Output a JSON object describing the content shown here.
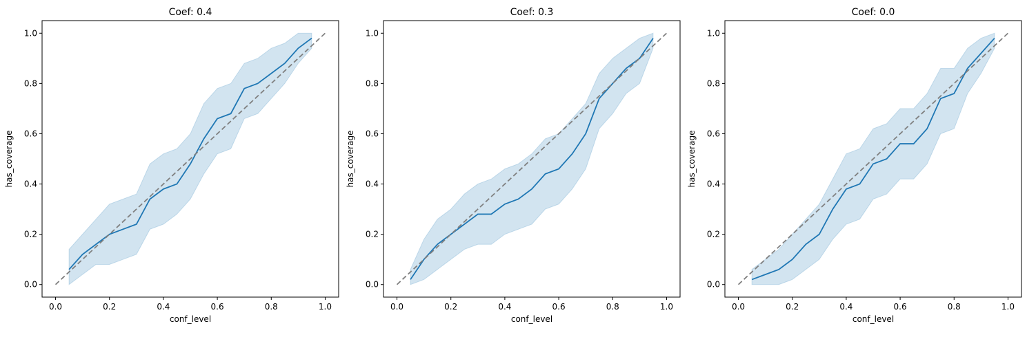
{
  "figure": {
    "background": "#ffffff"
  },
  "colors": {
    "series": "#1f77b4",
    "reference": "#808080"
  },
  "chart_data": [
    {
      "type": "line",
      "title": "Coef: 0.4",
      "xlabel": "conf_level",
      "ylabel": "has_coverage",
      "xlim": [
        -0.05,
        1.05
      ],
      "ylim": [
        -0.05,
        1.05
      ],
      "xticks": [
        0.0,
        0.2,
        0.4,
        0.6,
        0.8,
        1.0
      ],
      "yticks": [
        0.0,
        0.2,
        0.4,
        0.6,
        0.8,
        1.0
      ],
      "xtick_labels": [
        "0.0",
        "0.2",
        "0.4",
        "0.6",
        "0.8",
        "1.0"
      ],
      "ytick_labels": [
        "0.0",
        "0.2",
        "0.4",
        "0.6",
        "0.8",
        "1.0"
      ],
      "x": [
        0.05,
        0.1,
        0.15,
        0.2,
        0.25,
        0.3,
        0.35,
        0.4,
        0.45,
        0.5,
        0.55,
        0.6,
        0.65,
        0.7,
        0.75,
        0.8,
        0.85,
        0.9,
        0.95
      ],
      "mean": [
        0.06,
        0.12,
        0.16,
        0.2,
        0.22,
        0.24,
        0.34,
        0.38,
        0.4,
        0.48,
        0.58,
        0.66,
        0.68,
        0.78,
        0.8,
        0.84,
        0.88,
        0.94,
        0.98
      ],
      "lower": [
        0.0,
        0.04,
        0.08,
        0.08,
        0.1,
        0.12,
        0.22,
        0.24,
        0.28,
        0.34,
        0.44,
        0.52,
        0.54,
        0.66,
        0.68,
        0.74,
        0.8,
        0.88,
        0.94
      ],
      "upper": [
        0.14,
        0.2,
        0.26,
        0.32,
        0.34,
        0.36,
        0.48,
        0.52,
        0.54,
        0.6,
        0.72,
        0.78,
        0.8,
        0.88,
        0.9,
        0.94,
        0.96,
        1.0,
        1.0
      ],
      "reference": {
        "x": [
          0.0,
          1.0
        ],
        "y": [
          0.0,
          1.0
        ],
        "style": "dashed"
      }
    },
    {
      "type": "line",
      "title": "Coef: 0.3",
      "xlabel": "conf_level",
      "ylabel": "has_coverage",
      "xlim": [
        -0.05,
        1.05
      ],
      "ylim": [
        -0.05,
        1.05
      ],
      "xticks": [
        0.0,
        0.2,
        0.4,
        0.6,
        0.8,
        1.0
      ],
      "yticks": [
        0.0,
        0.2,
        0.4,
        0.6,
        0.8,
        1.0
      ],
      "xtick_labels": [
        "0.0",
        "0.2",
        "0.4",
        "0.6",
        "0.8",
        "1.0"
      ],
      "ytick_labels": [
        "0.0",
        "0.2",
        "0.4",
        "0.6",
        "0.8",
        "1.0"
      ],
      "x": [
        0.05,
        0.1,
        0.15,
        0.2,
        0.25,
        0.3,
        0.35,
        0.4,
        0.45,
        0.5,
        0.55,
        0.6,
        0.65,
        0.7,
        0.75,
        0.8,
        0.85,
        0.9,
        0.95
      ],
      "mean": [
        0.02,
        0.1,
        0.16,
        0.2,
        0.24,
        0.28,
        0.28,
        0.32,
        0.34,
        0.38,
        0.44,
        0.46,
        0.52,
        0.6,
        0.74,
        0.8,
        0.86,
        0.9,
        0.98
      ],
      "lower": [
        0.0,
        0.02,
        0.06,
        0.1,
        0.14,
        0.16,
        0.16,
        0.2,
        0.22,
        0.24,
        0.3,
        0.32,
        0.38,
        0.46,
        0.62,
        0.68,
        0.76,
        0.8,
        0.94
      ],
      "upper": [
        0.06,
        0.18,
        0.26,
        0.3,
        0.36,
        0.4,
        0.42,
        0.46,
        0.48,
        0.52,
        0.58,
        0.6,
        0.66,
        0.72,
        0.84,
        0.9,
        0.94,
        0.98,
        1.0
      ],
      "reference": {
        "x": [
          0.0,
          1.0
        ],
        "y": [
          0.0,
          1.0
        ],
        "style": "dashed"
      }
    },
    {
      "type": "line",
      "title": "Coef: 0.0",
      "xlabel": "conf_level",
      "ylabel": "has_coverage",
      "xlim": [
        -0.05,
        1.05
      ],
      "ylim": [
        -0.05,
        1.05
      ],
      "xticks": [
        0.0,
        0.2,
        0.4,
        0.6,
        0.8,
        1.0
      ],
      "yticks": [
        0.0,
        0.2,
        0.4,
        0.6,
        0.8,
        1.0
      ],
      "xtick_labels": [
        "0.0",
        "0.2",
        "0.4",
        "0.6",
        "0.8",
        "1.0"
      ],
      "ytick_labels": [
        "0.0",
        "0.2",
        "0.4",
        "0.6",
        "0.8",
        "1.0"
      ],
      "x": [
        0.05,
        0.1,
        0.15,
        0.2,
        0.25,
        0.3,
        0.35,
        0.4,
        0.45,
        0.5,
        0.55,
        0.6,
        0.65,
        0.7,
        0.75,
        0.8,
        0.85,
        0.9,
        0.95
      ],
      "mean": [
        0.02,
        0.04,
        0.06,
        0.1,
        0.16,
        0.2,
        0.3,
        0.38,
        0.4,
        0.48,
        0.5,
        0.56,
        0.56,
        0.62,
        0.74,
        0.76,
        0.86,
        0.92,
        0.98
      ],
      "lower": [
        0.0,
        0.0,
        0.0,
        0.02,
        0.06,
        0.1,
        0.18,
        0.24,
        0.26,
        0.34,
        0.36,
        0.42,
        0.42,
        0.48,
        0.6,
        0.62,
        0.76,
        0.84,
        0.94
      ],
      "upper": [
        0.06,
        0.1,
        0.14,
        0.2,
        0.26,
        0.32,
        0.42,
        0.52,
        0.54,
        0.62,
        0.64,
        0.7,
        0.7,
        0.76,
        0.86,
        0.86,
        0.94,
        0.98,
        1.0
      ],
      "reference": {
        "x": [
          0.0,
          1.0
        ],
        "y": [
          0.0,
          1.0
        ],
        "style": "dashed"
      }
    }
  ]
}
